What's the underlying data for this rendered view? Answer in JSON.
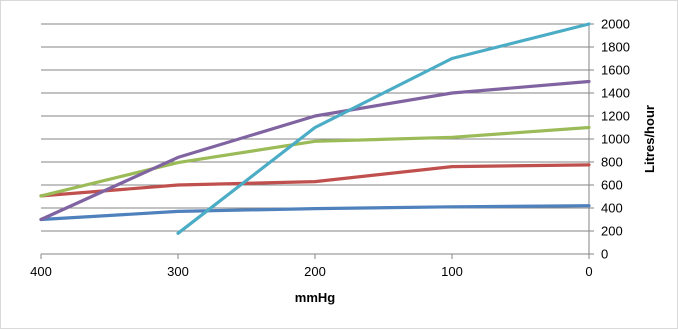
{
  "chart_data": {
    "type": "line",
    "xlabel": "mmHg",
    "ylabel": "Litres/hour",
    "x_reversed": true,
    "xlim": [
      0,
      400
    ],
    "ylim": [
      0,
      2000
    ],
    "x_ticks": [
      400,
      300,
      200,
      100,
      0
    ],
    "y_ticks": [
      0,
      200,
      400,
      600,
      800,
      1000,
      1200,
      1400,
      1600,
      1800,
      2000
    ],
    "y_axis_position": "right",
    "grid": true,
    "legend": "none",
    "series": [
      {
        "color": "#4f81bd",
        "points": [
          [
            400,
            300
          ],
          [
            300,
            370
          ],
          [
            200,
            395
          ],
          [
            100,
            410
          ],
          [
            0,
            420
          ]
        ]
      },
      {
        "color": "#c0504d",
        "points": [
          [
            400,
            505
          ],
          [
            300,
            600
          ],
          [
            200,
            630
          ],
          [
            100,
            760
          ],
          [
            0,
            775
          ]
        ]
      },
      {
        "color": "#9bbb59",
        "points": [
          [
            400,
            505
          ],
          [
            300,
            795
          ],
          [
            200,
            980
          ],
          [
            100,
            1015
          ],
          [
            0,
            1100
          ]
        ]
      },
      {
        "color": "#8064a2",
        "points": [
          [
            400,
            300
          ],
          [
            300,
            840
          ],
          [
            200,
            1200
          ],
          [
            100,
            1400
          ],
          [
            0,
            1500
          ]
        ]
      },
      {
        "color": "#4bacc6",
        "points": [
          [
            300,
            180
          ],
          [
            200,
            1100
          ],
          [
            100,
            1700
          ],
          [
            0,
            2000
          ]
        ]
      }
    ]
  }
}
